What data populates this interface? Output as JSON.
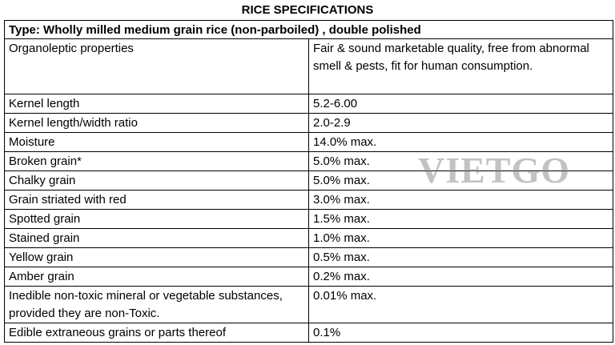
{
  "title": "RICE SPECIFICATIONS",
  "type_line": "Type: Wholly milled medium grain rice (non-parboiled)  , double polished",
  "rows": [
    {
      "property": "Organoleptic properties",
      "value": "Fair & sound marketable quality, free from abnormal smell & pests, fit for human consumption."
    },
    {
      "property": "Kernel length",
      "value": "5.2-6.00"
    },
    {
      "property": "Kernel length/width ratio",
      "value": "2.0-2.9"
    },
    {
      "property": "Moisture",
      "value": "14.0% max."
    },
    {
      "property": "Broken grain*",
      "value": "5.0% max."
    },
    {
      "property": "Chalky grain",
      "value": "5.0% max."
    },
    {
      "property": "Grain striated with red",
      "value": "3.0% max."
    },
    {
      "property": "Spotted grain",
      "value": "1.5% max."
    },
    {
      "property": "Stained grain",
      "value": "1.0% max."
    },
    {
      "property": "Yellow grain",
      "value": "0.5% max."
    },
    {
      "property": "Amber grain",
      "value": "0.2% max."
    },
    {
      "property": "Inedible non-toxic mineral or vegetable substances, provided they are non-Toxic.",
      "value": "0.01% max."
    },
    {
      "property": "Edible extraneous grains or parts thereof",
      "value": "0.1%"
    }
  ],
  "watermark": "VIETGO"
}
